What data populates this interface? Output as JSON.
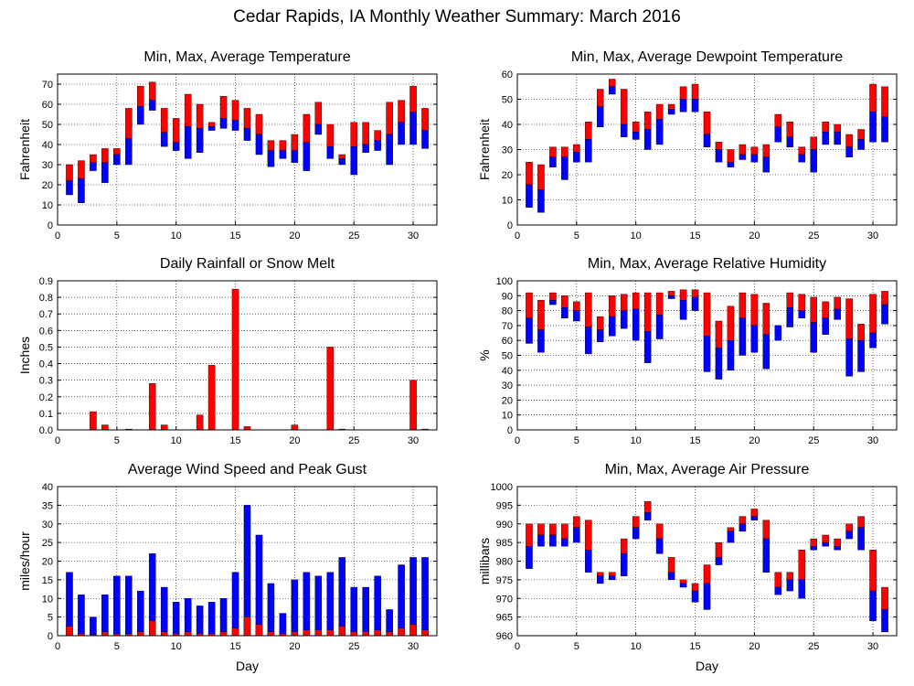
{
  "title": "Cedar Rapids, IA Monthly Weather Summary: March 2016",
  "colors": {
    "high": "#ff0000",
    "low": "#0000ff",
    "grid": "#000000"
  },
  "chart_data": [
    {
      "id": "temp",
      "type": "bar",
      "style": "floating-range",
      "title": "Min, Max, Average Temperature",
      "ylabel": "Fahrenheit",
      "xlabel": "",
      "xlim": [
        0,
        32
      ],
      "xticks": [
        0,
        5,
        10,
        15,
        20,
        25,
        30
      ],
      "ylim": [
        0,
        75
      ],
      "yticks": [
        0,
        10,
        20,
        30,
        40,
        50,
        60,
        70
      ],
      "grid": true,
      "days": [
        1,
        2,
        3,
        4,
        5,
        6,
        7,
        8,
        9,
        10,
        11,
        12,
        13,
        14,
        15,
        16,
        17,
        18,
        19,
        20,
        21,
        22,
        23,
        24,
        25,
        26,
        27,
        28,
        29,
        30,
        31
      ],
      "min": [
        15,
        11,
        27,
        21,
        30,
        30,
        50,
        57,
        39,
        37,
        33,
        36,
        47,
        48,
        47,
        42,
        35,
        29,
        33,
        31,
        27,
        45,
        33,
        30,
        25,
        36,
        37,
        30,
        40,
        40,
        38
      ],
      "avg": [
        22,
        23,
        31,
        31,
        35,
        43,
        59,
        62,
        46,
        41,
        49,
        48,
        49,
        53,
        52,
        48,
        45,
        37,
        37,
        37,
        41,
        50,
        39,
        33,
        39,
        40,
        42,
        45,
        51,
        56,
        47
      ],
      "max": [
        30,
        32,
        35,
        38,
        38,
        58,
        69,
        71,
        58,
        53,
        65,
        60,
        51,
        64,
        62,
        58,
        55,
        42,
        42,
        45,
        55,
        61,
        50,
        35,
        51,
        51,
        47,
        61,
        62,
        69,
        58
      ]
    },
    {
      "id": "dewpoint",
      "type": "bar",
      "style": "floating-range",
      "title": "Min, Max, Average Dewpoint Temperature",
      "ylabel": "Fahrenheit",
      "xlabel": "",
      "xlim": [
        0,
        32
      ],
      "xticks": [
        0,
        5,
        10,
        15,
        20,
        25,
        30
      ],
      "ylim": [
        0,
        60
      ],
      "yticks": [
        0,
        10,
        20,
        30,
        40,
        50,
        60
      ],
      "grid": true,
      "days": [
        1,
        2,
        3,
        4,
        5,
        6,
        7,
        8,
        9,
        10,
        11,
        12,
        13,
        14,
        15,
        16,
        17,
        18,
        19,
        20,
        21,
        22,
        23,
        24,
        25,
        26,
        27,
        28,
        29,
        30,
        31
      ],
      "min": [
        7,
        5,
        23,
        18,
        25,
        25,
        39,
        52,
        35,
        34,
        30,
        32,
        44,
        45,
        45,
        31,
        25,
        23,
        26,
        25,
        21,
        33,
        31,
        25,
        21,
        32,
        32,
        27,
        30,
        33,
        33
      ],
      "avg": [
        16,
        14,
        27,
        27,
        29,
        34,
        47,
        55,
        40,
        37,
        38,
        42,
        46,
        50,
        50,
        36,
        30,
        25,
        28,
        28,
        27,
        39,
        35,
        28,
        30,
        37,
        37,
        31,
        34,
        45,
        43
      ],
      "max": [
        25,
        24,
        31,
        31,
        32,
        41,
        54,
        58,
        54,
        41,
        45,
        48,
        48,
        55,
        56,
        45,
        33,
        30,
        32,
        31,
        32,
        44,
        41,
        31,
        35,
        41,
        40,
        36,
        38,
        56,
        55
      ]
    },
    {
      "id": "rainfall",
      "type": "bar",
      "title": "Daily Rainfall or Snow Melt",
      "ylabel": "Inches",
      "xlabel": "",
      "xlim": [
        0,
        32
      ],
      "xticks": [
        0,
        5,
        10,
        15,
        20,
        25,
        30
      ],
      "ylim": [
        0,
        0.9
      ],
      "yticks": [
        0.0,
        0.1,
        0.2,
        0.3,
        0.4,
        0.5,
        0.6,
        0.7,
        0.8,
        0.9
      ],
      "ydecimals": 1,
      "grid": true,
      "days": [
        1,
        2,
        3,
        4,
        5,
        6,
        7,
        8,
        9,
        10,
        11,
        12,
        13,
        14,
        15,
        16,
        17,
        18,
        19,
        20,
        21,
        22,
        23,
        24,
        25,
        26,
        27,
        28,
        29,
        30,
        31
      ],
      "values": [
        0,
        0,
        0.11,
        0.03,
        0,
        0.005,
        0,
        0.28,
        0.03,
        0,
        0,
        0.09,
        0.39,
        0,
        0.85,
        0.02,
        0,
        0,
        0,
        0.03,
        0,
        0,
        0.5,
        0.005,
        0,
        0,
        0,
        0,
        0,
        0.3,
        0.005
      ]
    },
    {
      "id": "humidity",
      "type": "bar",
      "style": "floating-range",
      "title": "Min, Max, Average Relative Humidity",
      "ylabel": "%",
      "xlabel": "",
      "xlim": [
        0,
        32
      ],
      "xticks": [
        0,
        5,
        10,
        15,
        20,
        25,
        30
      ],
      "ylim": [
        0,
        100
      ],
      "yticks": [
        0,
        10,
        20,
        30,
        40,
        50,
        60,
        70,
        80,
        90,
        100
      ],
      "grid": true,
      "days": [
        1,
        2,
        3,
        4,
        5,
        6,
        7,
        8,
        9,
        10,
        11,
        12,
        13,
        14,
        15,
        16,
        17,
        18,
        19,
        20,
        21,
        22,
        23,
        24,
        25,
        26,
        27,
        28,
        29,
        30,
        31
      ],
      "min": [
        58,
        52,
        84,
        75,
        73,
        51,
        59,
        63,
        68,
        60,
        45,
        61,
        88,
        74,
        80,
        39,
        34,
        40,
        50,
        52,
        41,
        60,
        69,
        75,
        52,
        64,
        74,
        36,
        39,
        55,
        71
      ],
      "avg": [
        75,
        67,
        87,
        82,
        80,
        69,
        67,
        76,
        80,
        81,
        66,
        77,
        90,
        87,
        89,
        63,
        55,
        60,
        75,
        70,
        64,
        70,
        82,
        80,
        72,
        75,
        81,
        61,
        60,
        65,
        84
      ],
      "max": [
        92,
        87,
        92,
        90,
        86,
        92,
        76,
        90,
        91,
        92,
        92,
        92,
        93,
        94,
        94,
        92,
        73,
        83,
        92,
        91,
        85,
        70,
        92,
        91,
        89,
        86,
        89,
        88,
        71,
        91,
        93
      ]
    },
    {
      "id": "wind",
      "type": "bar",
      "style": "overlaid",
      "title": "Average Wind Speed and Peak Gust",
      "ylabel": "miles/hour",
      "xlabel": "Day",
      "xlim": [
        0,
        32
      ],
      "xticks": [
        0,
        5,
        10,
        15,
        20,
        25,
        30
      ],
      "ylim": [
        0,
        40
      ],
      "yticks": [
        0,
        5,
        10,
        15,
        20,
        25,
        30,
        35,
        40
      ],
      "grid": true,
      "days": [
        1,
        2,
        3,
        4,
        5,
        6,
        7,
        8,
        9,
        10,
        11,
        12,
        13,
        14,
        15,
        16,
        17,
        18,
        19,
        20,
        21,
        22,
        23,
        24,
        25,
        26,
        27,
        28,
        29,
        30,
        31
      ],
      "peak_gust": [
        17,
        11,
        5,
        11,
        16,
        16,
        12,
        22,
        13,
        9,
        10,
        8,
        9,
        10,
        17,
        35,
        27,
        14,
        6,
        15,
        17,
        16,
        17,
        21,
        13,
        13,
        16,
        7,
        19,
        21,
        21
      ],
      "avg_speed": [
        2.5,
        0.5,
        0.3,
        1,
        0.5,
        0.5,
        1,
        4,
        1,
        0.5,
        1,
        0.5,
        0.5,
        1,
        2,
        5,
        3,
        1,
        0.5,
        1,
        1.5,
        1.5,
        1.5,
        2.5,
        1,
        1,
        1.5,
        1,
        2,
        3,
        1.5
      ]
    },
    {
      "id": "pressure",
      "type": "bar",
      "style": "floating-range",
      "title": "Min, Max, Average Air Pressure",
      "ylabel": "millibars",
      "xlabel": "Day",
      "xlim": [
        0,
        32
      ],
      "xticks": [
        0,
        5,
        10,
        15,
        20,
        25,
        30
      ],
      "ylim": [
        960,
        1000
      ],
      "yticks": [
        960,
        965,
        970,
        975,
        980,
        985,
        990,
        995,
        1000
      ],
      "grid": true,
      "days": [
        1,
        2,
        3,
        4,
        5,
        6,
        7,
        8,
        9,
        10,
        11,
        12,
        13,
        14,
        15,
        16,
        17,
        18,
        19,
        20,
        21,
        22,
        23,
        24,
        25,
        26,
        27,
        28,
        29,
        30,
        31
      ],
      "min": [
        978,
        984,
        984,
        984,
        985,
        977,
        974,
        975,
        976,
        986,
        991,
        982,
        975,
        973,
        969,
        967,
        979,
        985,
        988,
        991,
        977,
        971,
        972,
        970,
        983,
        984,
        983,
        986,
        983,
        964,
        961
      ],
      "avg": [
        984,
        987,
        987,
        986,
        989,
        983,
        976,
        976,
        982,
        989,
        993,
        986,
        977,
        974,
        972,
        974,
        981,
        988,
        990,
        992,
        986,
        973,
        975,
        975,
        984,
        985,
        984,
        988,
        989,
        972,
        967
      ],
      "max": [
        990,
        990,
        990,
        990,
        992,
        991,
        977,
        977,
        986,
        992,
        996,
        990,
        981,
        975,
        974,
        979,
        985,
        989,
        992,
        994,
        991,
        977,
        977,
        983,
        986,
        987,
        986,
        990,
        992,
        983,
        973
      ]
    }
  ]
}
